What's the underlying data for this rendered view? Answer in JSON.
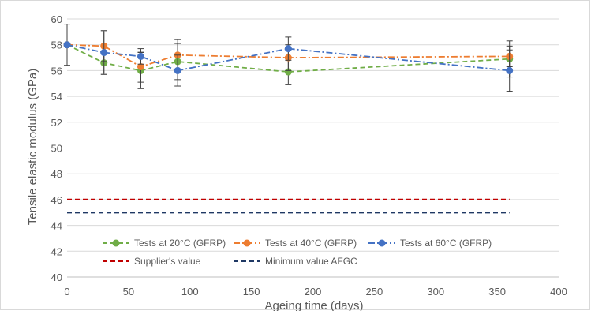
{
  "chart_data": {
    "type": "line",
    "xlabel": "Ageing time (days)",
    "ylabel": "Tensile elastic modulus (GPa)",
    "xlim": [
      0,
      400
    ],
    "ylim": [
      40,
      60
    ],
    "xticks": [
      0,
      50,
      100,
      150,
      200,
      250,
      300,
      350,
      400
    ],
    "yticks": [
      40,
      42,
      44,
      46,
      48,
      50,
      52,
      54,
      56,
      58,
      60
    ],
    "grid": "horizontal",
    "legend_position": "bottom-inside",
    "series": [
      {
        "name": "Tests at 20°C (GFRP)",
        "color": "#70ad47",
        "dash": "dash",
        "marker": "circle",
        "x": [
          0,
          30,
          60,
          90,
          180,
          360
        ],
        "y": [
          58.0,
          56.6,
          56.0,
          56.7,
          55.9,
          56.9
        ],
        "error": [
          1.6,
          0.9,
          1.4,
          1.4,
          1.0,
          1.4
        ]
      },
      {
        "name": "Tests at 40°C (GFRP)",
        "color": "#ed7d31",
        "dash": "dashdot",
        "marker": "circle",
        "x": [
          0,
          30,
          60,
          90,
          180,
          360
        ],
        "y": [
          58.0,
          57.9,
          56.3,
          57.2,
          57.0,
          57.1
        ],
        "error": [
          1.6,
          1.2,
          1.2,
          1.2,
          1.0,
          0.8
        ]
      },
      {
        "name": "Tests at 60°C (GFRP)",
        "color": "#4472c4",
        "dash": "dashdot",
        "marker": "circle",
        "x": [
          0,
          30,
          60,
          90,
          180,
          360
        ],
        "y": [
          58.0,
          57.4,
          57.1,
          56.0,
          57.7,
          56.0
        ],
        "error": [
          1.6,
          1.6,
          0.6,
          1.2,
          0.9,
          1.6
        ]
      },
      {
        "name": "Supplier's value",
        "color": "#c00000",
        "dash": "dash",
        "marker": "none",
        "x": [
          0,
          360
        ],
        "y": [
          46,
          46
        ]
      },
      {
        "name": "Minimum value AFGC",
        "color": "#1f3864",
        "dash": "dash",
        "marker": "none",
        "x": [
          0,
          360
        ],
        "y": [
          45,
          45
        ]
      }
    ]
  }
}
